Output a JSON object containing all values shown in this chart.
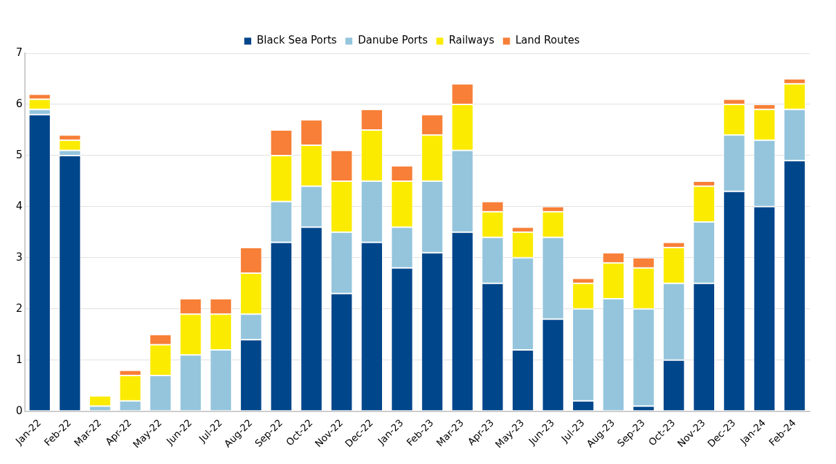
{
  "chart_data": {
    "type": "bar",
    "stacked": true,
    "categories": [
      "Jan-22",
      "Feb-22",
      "Mar-22",
      "Apr-22",
      "May-22",
      "Jun-22",
      "Jul-22",
      "Aug-22",
      "Sep-22",
      "Oct-22",
      "Nov-22",
      "Dec-22",
      "Jan-23",
      "Feb-23",
      "Mar-23",
      "Apr-23",
      "May-23",
      "Jun-23",
      "Jul-23",
      "Aug-23",
      "Sep-23",
      "Oct-23",
      "Nov-23",
      "Dec-23",
      "Jan-24",
      "Feb-24"
    ],
    "series": [
      {
        "name": "Black Sea Ports",
        "color": "#00468b",
        "values": [
          5.8,
          5.0,
          0,
          0,
          0,
          0,
          0,
          1.4,
          3.3,
          3.6,
          2.3,
          3.3,
          2.8,
          3.1,
          3.5,
          2.5,
          1.2,
          1.8,
          0.2,
          0,
          0.1,
          1.0,
          2.5,
          4.3,
          4.0,
          4.9
        ]
      },
      {
        "name": "Danube Ports",
        "color": "#94c5dd",
        "values": [
          0.1,
          0.1,
          0.1,
          0.2,
          0.7,
          1.1,
          1.2,
          0.5,
          0.8,
          0.8,
          1.2,
          1.2,
          0.8,
          1.4,
          1.6,
          0.9,
          1.8,
          1.6,
          1.8,
          2.2,
          1.9,
          1.5,
          1.2,
          1.1,
          1.3,
          1.0
        ]
      },
      {
        "name": "Railways",
        "color": "#fbeb00",
        "values": [
          0.2,
          0.2,
          0.2,
          0.5,
          0.6,
          0.8,
          0.7,
          0.8,
          0.9,
          0.8,
          1.0,
          1.0,
          0.9,
          0.9,
          0.9,
          0.5,
          0.5,
          0.5,
          0.5,
          0.7,
          0.8,
          0.7,
          0.7,
          0.6,
          0.6,
          0.5
        ]
      },
      {
        "name": "Land Routes",
        "color": "#f77f37",
        "values": [
          0.1,
          0.1,
          0,
          0.1,
          0.2,
          0.3,
          0.3,
          0.5,
          0.5,
          0.5,
          0.6,
          0.4,
          0.3,
          0.4,
          0.4,
          0.2,
          0.1,
          0.1,
          0.1,
          0.2,
          0.2,
          0.1,
          0.1,
          0.1,
          0.1,
          0.1
        ]
      }
    ],
    "ylim": [
      0,
      7
    ],
    "yticks": [
      0,
      1,
      2,
      3,
      4,
      5,
      6,
      7
    ],
    "grid": "y",
    "legend": "top"
  }
}
